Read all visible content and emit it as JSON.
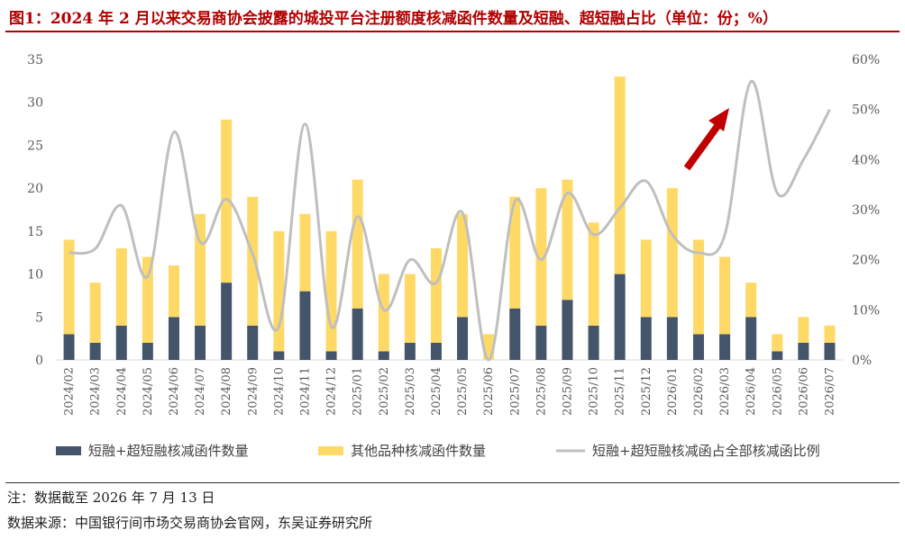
{
  "header": {
    "title": "图1：2024 年 2 月以来交易商协会披露的城投平台注册额度核减函件数量及短融、超短融占比（单位：份；%）"
  },
  "footer": {
    "note": "注：数据截至 2026 年 7 月 13 日",
    "source": "数据来源：中国银行间市场交易商协会官网，东吴证券研究所"
  },
  "colors": {
    "dark_bar": "#44546a",
    "yellow_bar": "#ffd965",
    "line": "#bfbfbf",
    "arrow": "#c00000",
    "title": "#b00000"
  },
  "chart_data": {
    "type": "bar",
    "stacked": true,
    "categories": [
      "2024/02",
      "2024/03",
      "2024/04",
      "2024/05",
      "2024/06",
      "2024/07",
      "2024/08",
      "2024/09",
      "2024/10",
      "2024/11",
      "2024/12",
      "2025/01",
      "2025/02",
      "2025/03",
      "2025/04",
      "2025/05",
      "2025/06",
      "2025/07",
      "2025/08",
      "2025/09",
      "2025/10",
      "2025/11",
      "2025/12",
      "2026/01",
      "2026/02",
      "2026/03",
      "2026/04",
      "2026/05",
      "2026/06",
      "2026/07"
    ],
    "series": [
      {
        "name": "短融+超短融核减函件数量",
        "type": "bar",
        "axis": "left",
        "values": [
          3,
          2,
          4,
          2,
          5,
          4,
          9,
          4,
          1,
          8,
          1,
          6,
          1,
          2,
          2,
          5,
          0,
          6,
          4,
          7,
          4,
          10,
          5,
          5,
          3,
          3,
          5,
          1,
          2,
          2
        ]
      },
      {
        "name": "其他品种核减函件数量",
        "type": "bar",
        "axis": "left",
        "values": [
          11,
          7,
          9,
          10,
          6,
          13,
          19,
          15,
          14,
          9,
          14,
          15,
          9,
          8,
          11,
          12,
          3,
          13,
          16,
          14,
          12,
          23,
          9,
          15,
          11,
          9,
          4,
          2,
          3,
          2
        ]
      },
      {
        "name": "短融+超短融核减函占全部核减函比例",
        "type": "line",
        "axis": "right",
        "unit": "%",
        "values": [
          21.4,
          22.2,
          30.8,
          16.7,
          45.5,
          23.5,
          32.1,
          21.1,
          6.7,
          47.1,
          6.7,
          28.6,
          10.0,
          20.0,
          15.4,
          29.4,
          0.0,
          31.6,
          20.0,
          33.3,
          25.0,
          30.3,
          35.7,
          25.0,
          21.4,
          25.0,
          55.6,
          33.3,
          40.0,
          50.0
        ]
      }
    ],
    "y_left": {
      "ylim": [
        0,
        35
      ],
      "ticks": [
        "0",
        "5",
        "10",
        "15",
        "20",
        "25",
        "30",
        "35"
      ]
    },
    "y_right": {
      "ylim": [
        0,
        60
      ],
      "ticks": [
        "0%",
        "10%",
        "20%",
        "30%",
        "40%",
        "50%",
        "60%"
      ]
    },
    "legend": "bottom",
    "grid": false
  }
}
